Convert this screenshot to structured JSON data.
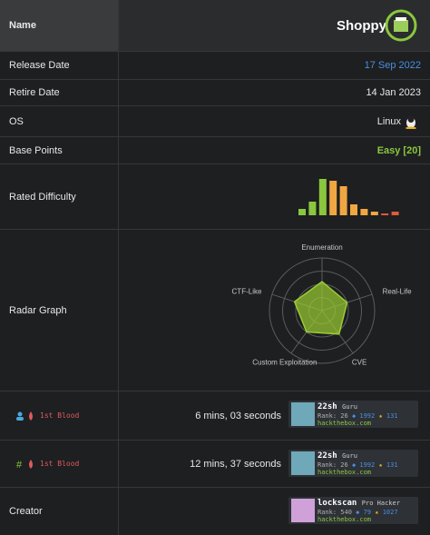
{
  "header": {
    "label": "Name",
    "machine": "Shoppy"
  },
  "rows": [
    {
      "label": "Release Date",
      "value": "17 Sep 2022"
    },
    {
      "label": "Retire Date",
      "value": "14 Jan 2023"
    },
    {
      "label": "OS",
      "value": "Linux"
    },
    {
      "label": "Base Points",
      "value": "Easy [20]"
    }
  ],
  "rated_difficulty": {
    "type": "bar",
    "label": "Rated Difficulty",
    "values": [
      5,
      13,
      38,
      36,
      30,
      10,
      5,
      2,
      0,
      2
    ],
    "colors": [
      "#8ac73e",
      "#8ac73e",
      "#8ac73e",
      "#f0a742",
      "#f0a742",
      "#f0a742",
      "#f0a742",
      "#f0a742",
      "#e05a3a",
      "#e05a3a"
    ],
    "ylim": [
      0,
      40
    ]
  },
  "radar": {
    "type": "radar",
    "label": "Radar Graph",
    "categories": [
      "Enumeration",
      "Real-Life",
      "CVE",
      "Custom Exploitation",
      "CTF-Like"
    ],
    "values": [
      55,
      50,
      55,
      50,
      55
    ],
    "rlim": [
      0,
      100
    ],
    "color": "#9acd32"
  },
  "bloods": [
    {
      "label": "1st Blood",
      "time": "6 mins, 03 seconds",
      "user": {
        "name": "22sh",
        "rank_title": "Guru",
        "rank": "Rank: 26",
        "respect": "1992",
        "points": "131",
        "site": "hackthebox.com"
      }
    },
    {
      "label": "1st Blood",
      "time": "12 mins, 37 seconds",
      "user": {
        "name": "22sh",
        "rank_title": "Guru",
        "rank": "Rank: 26",
        "respect": "1992",
        "points": "131",
        "site": "hackthebox.com"
      }
    }
  ],
  "creator": {
    "label": "Creator",
    "user": {
      "name": "lockscan",
      "rank_title": "Pro Hacker",
      "rank": "Rank: 540",
      "respect": "79",
      "points": "1027",
      "site": "hackthebox.com"
    }
  }
}
